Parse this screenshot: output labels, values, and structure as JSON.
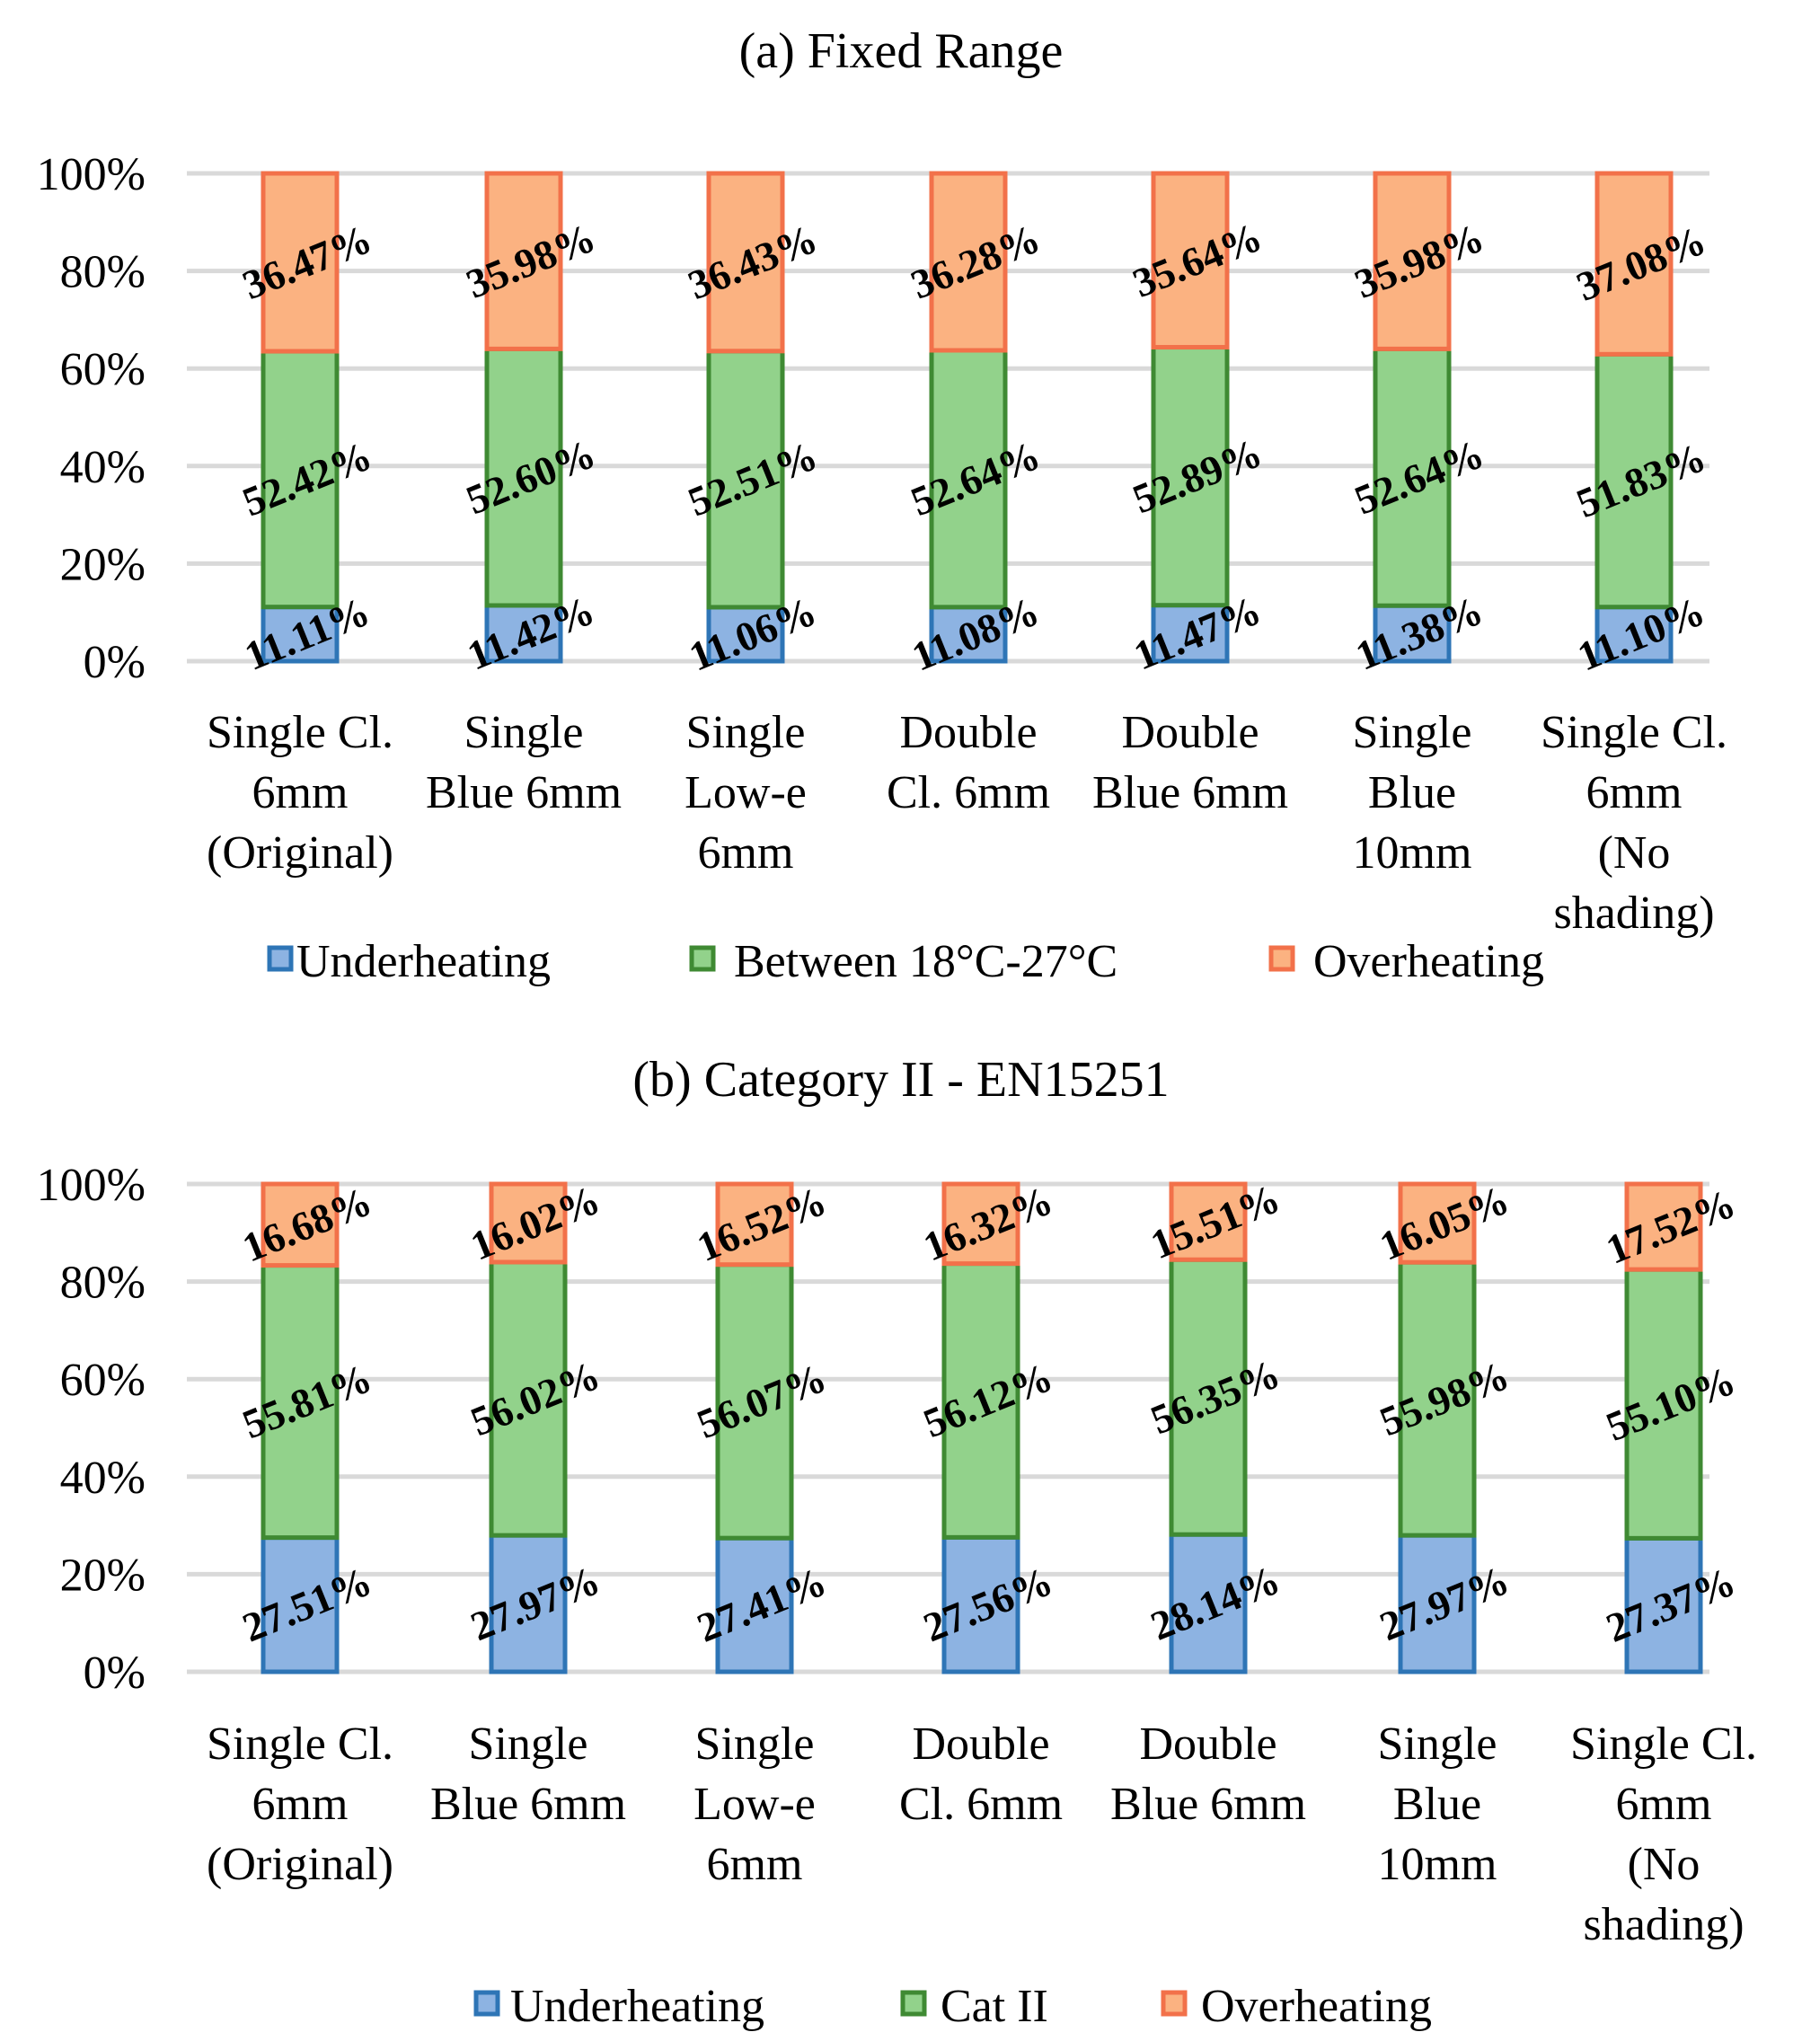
{
  "chart_data": [
    {
      "type": "bar",
      "stacked": true,
      "percent": true,
      "title": "(a) Fixed Range",
      "categories": [
        [
          "Single Cl.",
          "6mm",
          "(Original)"
        ],
        [
          "Single",
          "Blue 6mm"
        ],
        [
          "Single",
          "Low-e",
          "6mm"
        ],
        [
          "Double",
          "Cl. 6mm"
        ],
        [
          "Double",
          "Blue 6mm"
        ],
        [
          "Single",
          "Blue",
          "10mm"
        ],
        [
          "Single Cl.",
          "6mm",
          "(No",
          "shading)"
        ]
      ],
      "series": [
        {
          "name": "Underheating",
          "values": [
            11.11,
            11.42,
            11.06,
            11.08,
            11.47,
            11.38,
            11.1
          ],
          "labels": [
            "11.11%",
            "11.42%",
            "11.06%",
            "11.08%",
            "11.47%",
            "11.38%",
            "11.10%"
          ],
          "fill": "#8db3e2",
          "stroke": "#2e75b6"
        },
        {
          "name": "Between 18°C-27°C",
          "values": [
            52.42,
            52.6,
            52.51,
            52.64,
            52.89,
            52.64,
            51.83
          ],
          "labels": [
            "52.42%",
            "52.60%",
            "52.51%",
            "52.64%",
            "52.89%",
            "52.64%",
            "51.83%"
          ],
          "fill": "#92d28b",
          "stroke": "#3f8a33"
        },
        {
          "name": "Overheating",
          "values": [
            36.47,
            35.98,
            36.43,
            36.28,
            35.64,
            35.98,
            37.08
          ],
          "labels": [
            "36.47%",
            "35.98%",
            "36.43%",
            "36.28%",
            "35.64%",
            "35.98%",
            "37.08%"
          ],
          "fill": "#fbb281",
          "stroke": "#f2714a"
        }
      ],
      "y_ticks": [
        "0%",
        "20%",
        "40%",
        "60%",
        "80%",
        "100%"
      ],
      "ylim": [
        0,
        100
      ],
      "grid": true,
      "legend": "bottom"
    },
    {
      "type": "bar",
      "stacked": true,
      "percent": true,
      "title": "(b) Category II - EN15251",
      "categories": [
        [
          "Single Cl.",
          "6mm",
          "(Original)"
        ],
        [
          "Single",
          "Blue 6mm"
        ],
        [
          "Single",
          "Low-e",
          "6mm"
        ],
        [
          "Double",
          "Cl. 6mm"
        ],
        [
          "Double",
          "Blue 6mm"
        ],
        [
          "Single",
          "Blue",
          "10mm"
        ],
        [
          "Single Cl.",
          "6mm",
          "(No",
          "shading)"
        ]
      ],
      "series": [
        {
          "name": "Underheating",
          "values": [
            27.51,
            27.97,
            27.41,
            27.56,
            28.14,
            27.97,
            27.37
          ],
          "labels": [
            "27.51%",
            "27.97%",
            "27.41%",
            "27.56%",
            "28.14%",
            "27.97%",
            "27.37%"
          ],
          "fill": "#8db3e2",
          "stroke": "#2e75b6"
        },
        {
          "name": "Cat II",
          "values": [
            55.81,
            56.02,
            56.07,
            56.12,
            56.35,
            55.98,
            55.1
          ],
          "labels": [
            "55.81%",
            "56.02%",
            "56.07%",
            "56.12%",
            "56.35%",
            "55.98%",
            "55.10%"
          ],
          "fill": "#92d28b",
          "stroke": "#3f8a33"
        },
        {
          "name": "Overheating",
          "values": [
            16.68,
            16.02,
            16.52,
            16.32,
            15.51,
            16.05,
            17.52
          ],
          "labels": [
            "16.68%",
            "16.02%",
            "16.52%",
            "16.32%",
            "15.51%",
            "16.05%",
            "17.52%"
          ],
          "fill": "#fbb281",
          "stroke": "#f2714a"
        }
      ],
      "y_ticks": [
        "0%",
        "20%",
        "40%",
        "60%",
        "80%",
        "100%"
      ],
      "ylim": [
        0,
        100
      ],
      "grid": true,
      "legend": "bottom"
    }
  ]
}
